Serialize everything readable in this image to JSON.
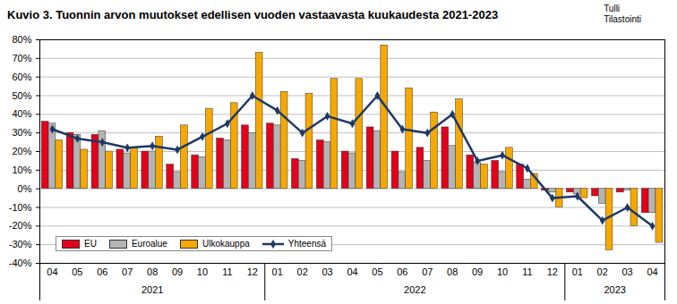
{
  "chart_data": {
    "type": "bar",
    "title": "Kuvio 3. Tuonnin arvon muutokset edellisen vuoden vastaavasta kuukaudesta 2021-2023",
    "source_lines": [
      "Tulli",
      "Tilastointi"
    ],
    "categories": [
      "04",
      "05",
      "06",
      "07",
      "08",
      "09",
      "10",
      "11",
      "12",
      "01",
      "02",
      "03",
      "04",
      "05",
      "06",
      "07",
      "08",
      "09",
      "10",
      "11",
      "12",
      "01",
      "02",
      "03",
      "04"
    ],
    "years": [
      "2021",
      "2021",
      "2021",
      "2021",
      "2021",
      "2021",
      "2021",
      "2021",
      "2021",
      "2022",
      "2022",
      "2022",
      "2022",
      "2022",
      "2022",
      "2022",
      "2022",
      "2022",
      "2022",
      "2022",
      "2022",
      "2023",
      "2023",
      "2023",
      "2023"
    ],
    "series": [
      {
        "name": "EU",
        "type": "bar",
        "color": "#e2001a",
        "values": [
          36,
          30,
          29,
          21,
          20,
          13,
          18,
          27,
          34,
          35,
          16,
          26,
          20,
          33,
          20,
          22,
          33,
          18,
          15,
          13,
          -1,
          -2,
          -4,
          -2,
          -13
        ]
      },
      {
        "name": "Euroalue",
        "type": "bar",
        "color": "#b4b4b4",
        "values": [
          35,
          29,
          31,
          19,
          20,
          9,
          17,
          26,
          30,
          34,
          15,
          25,
          19,
          31,
          9,
          15,
          23,
          14,
          9,
          5,
          -2,
          -3,
          -8,
          -1,
          -13
        ]
      },
      {
        "name": "Ulkokauppa",
        "type": "bar",
        "color": "#f5a800",
        "values": [
          26,
          21,
          20,
          22,
          28,
          34,
          43,
          46,
          73,
          52,
          51,
          59,
          59,
          77,
          54,
          41,
          48,
          13,
          22,
          8,
          -10,
          -5,
          -33,
          -20,
          -29
        ]
      },
      {
        "name": "Yhteensä",
        "type": "line",
        "color": "#1f3864",
        "marker": "diamond",
        "values": [
          32,
          27,
          25,
          22,
          23,
          21,
          28,
          35,
          50,
          42,
          30,
          39,
          35,
          50,
          32,
          30,
          40,
          15,
          18,
          11,
          -5,
          -4,
          -17,
          -10,
          -20
        ]
      }
    ],
    "ylim": [
      -40,
      80
    ],
    "yticks": [
      {
        "value": -40,
        "label": "-40%"
      },
      {
        "value": -30,
        "label": "-30%"
      },
      {
        "value": -20,
        "label": "-20%"
      },
      {
        "value": -10,
        "label": "-10%"
      },
      {
        "value": 0,
        "label": "0%"
      },
      {
        "value": 10,
        "label": "10%"
      },
      {
        "value": 20,
        "label": "20%"
      },
      {
        "value": 30,
        "label": "30%"
      },
      {
        "value": 40,
        "label": "40%"
      },
      {
        "value": 50,
        "label": "50%"
      },
      {
        "value": 60,
        "label": "60%"
      },
      {
        "value": 70,
        "label": "70%"
      },
      {
        "value": 80,
        "label": "80%"
      }
    ],
    "grid": true,
    "legend": "bottom-left"
  }
}
